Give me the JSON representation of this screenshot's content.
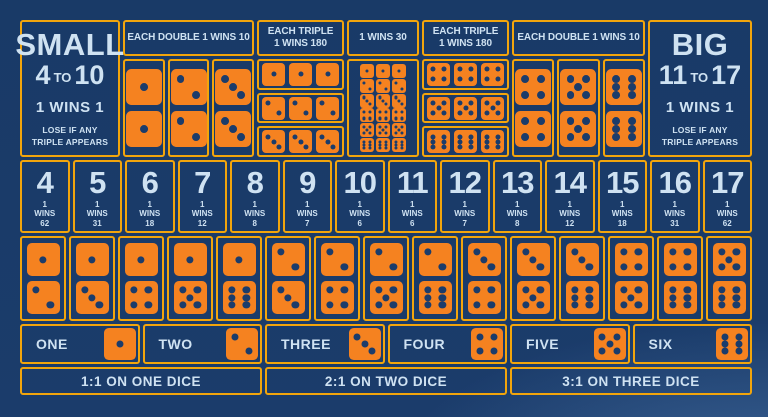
{
  "colors": {
    "background_navy": "#1b3c6b",
    "border_gold": "#f2a50c",
    "dice_orange": "#f58220",
    "text_light_blue": "#cfe2f2"
  },
  "small_box": {
    "title": "SMALL",
    "from": "4",
    "to_word": "TO",
    "to": "10",
    "odds": "1 WINS 1",
    "note1": "LOSE IF ANY",
    "note2": "TRIPLE APPEARS"
  },
  "big_box": {
    "title": "BIG",
    "from": "11",
    "to_word": "TO",
    "to": "17",
    "odds": "1 WINS 1",
    "note1": "LOSE IF ANY",
    "note2": "TRIPLE APPEARS"
  },
  "sections": {
    "double_left": {
      "header": "EACH DOUBLE 1 WINS 10",
      "dice": [
        1,
        2,
        3
      ]
    },
    "triple_left": {
      "header1": "EACH TRIPLE",
      "header2": "1 WINS 180",
      "dice": [
        1,
        2,
        3
      ]
    },
    "any_triple": {
      "header": "1 WINS 30",
      "dice": [
        1,
        2,
        3,
        4,
        5,
        6
      ]
    },
    "triple_right": {
      "header1": "EACH TRIPLE",
      "header2": "1 WINS 180",
      "dice": [
        4,
        5,
        6
      ]
    },
    "double_right": {
      "header": "EACH DOUBLE 1 WINS 10",
      "dice": [
        4,
        5,
        6
      ]
    }
  },
  "totals": {
    "stake_label": "1",
    "wins_label": "WINS",
    "numbers": [
      "4",
      "5",
      "6",
      "7",
      "8",
      "9",
      "10",
      "11",
      "12",
      "13",
      "14",
      "15",
      "16",
      "17"
    ],
    "payouts": [
      "62",
      "31",
      "18",
      "12",
      "8",
      "7",
      "6",
      "6",
      "7",
      "8",
      "12",
      "18",
      "31",
      "62"
    ]
  },
  "combos": [
    [
      1,
      2
    ],
    [
      1,
      3
    ],
    [
      1,
      4
    ],
    [
      1,
      5
    ],
    [
      1,
      6
    ],
    [
      2,
      3
    ],
    [
      2,
      4
    ],
    [
      2,
      5
    ],
    [
      2,
      6
    ],
    [
      3,
      4
    ],
    [
      3,
      5
    ],
    [
      3,
      6
    ],
    [
      4,
      5
    ],
    [
      4,
      6
    ],
    [
      5,
      6
    ]
  ],
  "singles": [
    {
      "label": "ONE",
      "die": 1
    },
    {
      "label": "TWO",
      "die": 2
    },
    {
      "label": "THREE",
      "die": 3
    },
    {
      "label": "FOUR",
      "die": 4
    },
    {
      "label": "FIVE",
      "die": 5
    },
    {
      "label": "SIX",
      "die": 6
    }
  ],
  "ribbons": [
    "1:1 ON ONE DICE",
    "2:1 ON TWO DICE",
    "3:1 ON THREE DICE"
  ]
}
